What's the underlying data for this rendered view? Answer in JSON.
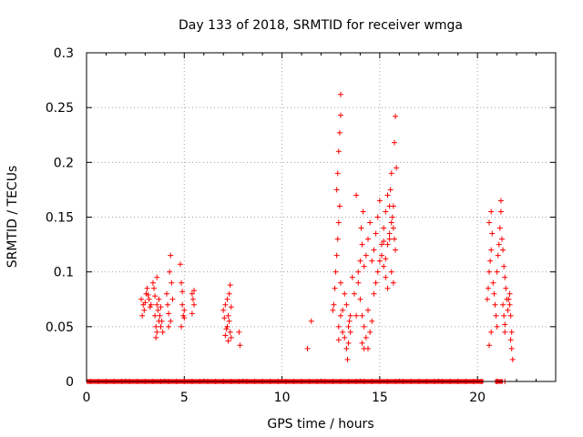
{
  "chart_data": {
    "type": "scatter",
    "title": "Day 133 of 2018, SRMTID for receiver wmga",
    "xlabel": "GPS time / hours",
    "ylabel": "SRMTID / TECUs",
    "xlim": [
      0,
      24
    ],
    "ylim": [
      0,
      0.3
    ],
    "xticks": [
      0,
      5,
      10,
      15,
      20
    ],
    "yticks": [
      0,
      0.05,
      0.1,
      0.15,
      0.2,
      0.25,
      0.3
    ],
    "xtick_labels": [
      "0",
      "5",
      "10",
      "15",
      "20"
    ],
    "ytick_labels": [
      "0",
      "0.05",
      "0.1",
      "0.15",
      "0.2",
      "0.25",
      "0.3"
    ],
    "grid": true,
    "marker": "+",
    "color": "#ff0000",
    "series": [
      {
        "name": "SRMTID",
        "points": [
          [
            2.8,
            0.075
          ],
          [
            2.85,
            0.06
          ],
          [
            2.9,
            0.07
          ],
          [
            2.95,
            0.065
          ],
          [
            3.0,
            0.072
          ],
          [
            3.05,
            0.08
          ],
          [
            3.1,
            0.085
          ],
          [
            3.15,
            0.079
          ],
          [
            3.2,
            0.075
          ],
          [
            3.25,
            0.068
          ],
          [
            3.3,
            0.07
          ],
          [
            3.4,
            0.09
          ],
          [
            3.45,
            0.085
          ],
          [
            3.5,
            0.06
          ],
          [
            3.55,
            0.05
          ],
          [
            3.6,
            0.045
          ],
          [
            3.6,
            0.07
          ],
          [
            3.65,
            0.065
          ],
          [
            3.7,
            0.075
          ],
          [
            3.75,
            0.06
          ],
          [
            3.8,
            0.05
          ],
          [
            3.85,
            0.055
          ],
          [
            3.9,
            0.045
          ],
          [
            3.55,
            0.04
          ],
          [
            3.7,
            0.055
          ],
          [
            3.8,
            0.068
          ],
          [
            3.6,
            0.095
          ],
          [
            3.5,
            0.078
          ],
          [
            4.1,
            0.08
          ],
          [
            4.15,
            0.07
          ],
          [
            4.2,
            0.062
          ],
          [
            4.25,
            0.1
          ],
          [
            4.3,
            0.115
          ],
          [
            4.35,
            0.09
          ],
          [
            4.4,
            0.075
          ],
          [
            4.2,
            0.05
          ],
          [
            4.3,
            0.055
          ],
          [
            4.8,
            0.107
          ],
          [
            4.85,
            0.09
          ],
          [
            4.9,
            0.082
          ],
          [
            4.95,
            0.06
          ],
          [
            5.0,
            0.065
          ],
          [
            4.85,
            0.05
          ],
          [
            4.9,
            0.07
          ],
          [
            5.0,
            0.058
          ],
          [
            5.4,
            0.08
          ],
          [
            5.45,
            0.075
          ],
          [
            5.5,
            0.07
          ],
          [
            5.4,
            0.062
          ],
          [
            5.5,
            0.083
          ],
          [
            7.0,
            0.065
          ],
          [
            7.05,
            0.058
          ],
          [
            7.1,
            0.07
          ],
          [
            7.15,
            0.048
          ],
          [
            7.2,
            0.05
          ],
          [
            7.25,
            0.06
          ],
          [
            7.3,
            0.055
          ],
          [
            7.35,
            0.045
          ],
          [
            7.4,
            0.04
          ],
          [
            7.2,
            0.075
          ],
          [
            7.3,
            0.08
          ],
          [
            7.35,
            0.088
          ],
          [
            7.1,
            0.042
          ],
          [
            7.4,
            0.068
          ],
          [
            7.25,
            0.037
          ],
          [
            7.8,
            0.045
          ],
          [
            7.85,
            0.033
          ],
          [
            11.3,
            0.03
          ],
          [
            11.5,
            0.055
          ],
          [
            12.6,
            0.065
          ],
          [
            12.65,
            0.07
          ],
          [
            12.7,
            0.085
          ],
          [
            12.75,
            0.1
          ],
          [
            12.8,
            0.115
          ],
          [
            12.85,
            0.13
          ],
          [
            12.9,
            0.145
          ],
          [
            12.95,
            0.16
          ],
          [
            12.8,
            0.175
          ],
          [
            12.85,
            0.19
          ],
          [
            12.9,
            0.21
          ],
          [
            12.95,
            0.227
          ],
          [
            13.0,
            0.243
          ],
          [
            13.0,
            0.262
          ],
          [
            12.9,
            0.05
          ],
          [
            13.0,
            0.06
          ],
          [
            13.1,
            0.045
          ],
          [
            13.2,
            0.04
          ],
          [
            13.3,
            0.03
          ],
          [
            13.35,
            0.02
          ],
          [
            13.4,
            0.05
          ],
          [
            13.45,
            0.055
          ],
          [
            13.5,
            0.06
          ],
          [
            13.3,
            0.07
          ],
          [
            13.2,
            0.08
          ],
          [
            13.1,
            0.065
          ],
          [
            13.4,
            0.035
          ],
          [
            13.5,
            0.045
          ],
          [
            13.0,
            0.09
          ],
          [
            12.9,
            0.038
          ],
          [
            13.6,
            0.095
          ],
          [
            13.7,
            0.08
          ],
          [
            13.8,
            0.06
          ],
          [
            13.9,
            0.1
          ],
          [
            14.0,
            0.11
          ],
          [
            14.05,
            0.14
          ],
          [
            14.1,
            0.125
          ],
          [
            14.15,
            0.155
          ],
          [
            13.8,
            0.17
          ],
          [
            13.9,
            0.09
          ],
          [
            14.0,
            0.075
          ],
          [
            14.1,
            0.06
          ],
          [
            14.2,
            0.05
          ],
          [
            14.3,
            0.04
          ],
          [
            14.4,
            0.03
          ],
          [
            14.2,
            0.105
          ],
          [
            14.3,
            0.115
          ],
          [
            14.4,
            0.13
          ],
          [
            14.5,
            0.145
          ],
          [
            14.6,
            0.11
          ],
          [
            14.7,
            0.12
          ],
          [
            14.8,
            0.135
          ],
          [
            14.9,
            0.15
          ],
          [
            15.0,
            0.165
          ],
          [
            14.1,
            0.035
          ],
          [
            14.2,
            0.03
          ],
          [
            14.5,
            0.045
          ],
          [
            14.6,
            0.055
          ],
          [
            14.4,
            0.065
          ],
          [
            14.7,
            0.08
          ],
          [
            14.8,
            0.09
          ],
          [
            14.9,
            0.1
          ],
          [
            15.0,
            0.11
          ],
          [
            15.1,
            0.125
          ],
          [
            15.2,
            0.14
          ],
          [
            15.3,
            0.155
          ],
          [
            15.4,
            0.17
          ],
          [
            15.5,
            0.16
          ],
          [
            15.55,
            0.175
          ],
          [
            15.6,
            0.19
          ],
          [
            15.65,
            0.15
          ],
          [
            15.7,
            0.14
          ],
          [
            15.75,
            0.13
          ],
          [
            15.8,
            0.12
          ],
          [
            15.1,
            0.115
          ],
          [
            15.2,
            0.105
          ],
          [
            15.3,
            0.095
          ],
          [
            15.4,
            0.085
          ],
          [
            15.5,
            0.13
          ],
          [
            15.6,
            0.1
          ],
          [
            15.7,
            0.16
          ],
          [
            15.75,
            0.218
          ],
          [
            15.8,
            0.242
          ],
          [
            15.85,
            0.195
          ],
          [
            15.5,
            0.135
          ],
          [
            15.4,
            0.125
          ],
          [
            15.6,
            0.145
          ],
          [
            15.2,
            0.128
          ],
          [
            15.3,
            0.112
          ],
          [
            15.7,
            0.09
          ],
          [
            20.5,
            0.075
          ],
          [
            20.55,
            0.085
          ],
          [
            20.6,
            0.1
          ],
          [
            20.65,
            0.11
          ],
          [
            20.7,
            0.12
          ],
          [
            20.75,
            0.135
          ],
          [
            20.6,
            0.145
          ],
          [
            20.7,
            0.155
          ],
          [
            20.8,
            0.09
          ],
          [
            20.85,
            0.08
          ],
          [
            20.9,
            0.07
          ],
          [
            20.95,
            0.06
          ],
          [
            21.0,
            0.05
          ],
          [
            20.7,
            0.045
          ],
          [
            20.6,
            0.033
          ],
          [
            21.0,
            0.1
          ],
          [
            21.05,
            0.115
          ],
          [
            21.1,
            0.125
          ],
          [
            21.15,
            0.14
          ],
          [
            21.2,
            0.155
          ],
          [
            21.2,
            0.165
          ],
          [
            21.25,
            0.13
          ],
          [
            21.3,
            0.12
          ],
          [
            21.35,
            0.105
          ],
          [
            21.4,
            0.095
          ],
          [
            21.45,
            0.085
          ],
          [
            21.5,
            0.075
          ],
          [
            21.3,
            0.07
          ],
          [
            21.35,
            0.06
          ],
          [
            21.4,
            0.052
          ],
          [
            21.6,
            0.075
          ],
          [
            21.65,
            0.07
          ],
          [
            21.7,
            0.06
          ],
          [
            21.75,
            0.045
          ],
          [
            21.7,
            0.038
          ],
          [
            21.75,
            0.03
          ],
          [
            21.8,
            0.02
          ],
          [
            21.65,
            0.08
          ],
          [
            21.55,
            0.065
          ],
          [
            21.4,
            0.045
          ],
          [
            0.2,
            0.0
          ],
          [
            0.6,
            0.0
          ],
          [
            1.0,
            0.0
          ],
          [
            1.4,
            0.0
          ],
          [
            1.8,
            0.0
          ],
          [
            2.2,
            0.0
          ],
          [
            2.6,
            0.0
          ],
          [
            3.0,
            0.0
          ],
          [
            3.4,
            0.0
          ],
          [
            3.8,
            0.0
          ],
          [
            4.2,
            0.0
          ],
          [
            4.6,
            0.0
          ],
          [
            5.0,
            0.0
          ],
          [
            5.4,
            0.0
          ],
          [
            5.8,
            0.0
          ],
          [
            6.2,
            0.0
          ],
          [
            6.6,
            0.0
          ],
          [
            7.0,
            0.0
          ],
          [
            7.4,
            0.0
          ],
          [
            7.8,
            0.0
          ],
          [
            8.2,
            0.0
          ],
          [
            8.6,
            0.0
          ],
          [
            9.0,
            0.0
          ],
          [
            9.4,
            0.0
          ],
          [
            9.8,
            0.0
          ],
          [
            10.2,
            0.0
          ],
          [
            10.6,
            0.0
          ],
          [
            11.0,
            0.0
          ],
          [
            11.4,
            0.0
          ],
          [
            11.8,
            0.0
          ],
          [
            12.2,
            0.0
          ],
          [
            12.6,
            0.0
          ],
          [
            13.0,
            0.0
          ],
          [
            13.4,
            0.0
          ],
          [
            13.8,
            0.0
          ],
          [
            14.2,
            0.0
          ],
          [
            14.6,
            0.0
          ],
          [
            15.0,
            0.0
          ],
          [
            15.4,
            0.0
          ],
          [
            15.8,
            0.0
          ],
          [
            16.2,
            0.0
          ],
          [
            16.6,
            0.0
          ],
          [
            17.0,
            0.0
          ],
          [
            17.4,
            0.0
          ],
          [
            17.8,
            0.0
          ],
          [
            18.2,
            0.0
          ],
          [
            18.6,
            0.0
          ],
          [
            19.0,
            0.0
          ],
          [
            19.4,
            0.0
          ],
          [
            19.8,
            0.0
          ],
          [
            20.2,
            0.0
          ],
          [
            21.0,
            0.0
          ],
          [
            21.4,
            0.0
          ]
        ]
      }
    ]
  }
}
